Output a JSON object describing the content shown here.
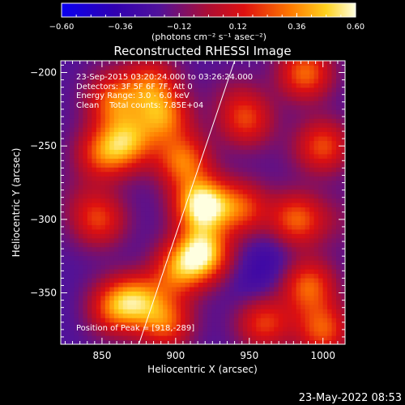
{
  "chart_data": {
    "type": "heatmap",
    "title": "Reconstructed RHESSI Image",
    "xlabel": "Heliocentric X (arcsec)",
    "ylabel": "Heliocentric Y (arcsec)",
    "xlim": [
      822,
      1015
    ],
    "ylim": [
      -385,
      -192
    ],
    "x_ticks": [
      850,
      900,
      950,
      1000
    ],
    "y_ticks": [
      -200,
      -250,
      -300,
      -350
    ],
    "colorbar": {
      "min": -0.6,
      "max": 0.6,
      "ticks": [
        -0.6,
        -0.36,
        -0.12,
        0.12,
        0.36,
        0.6
      ],
      "tick_labels": [
        "−0.60",
        "−0.36",
        "−0.12",
        "0.12",
        "0.36",
        "0.60"
      ],
      "units_label": "(photons cm⁻² s⁻¹ asec⁻²)"
    },
    "annotations": {
      "time": "23-Sep-2015 03:20:24.000 to 03:26:24.000",
      "detectors": "Detectors: 3F 5F 6F 7F, Att 0",
      "energy": "Energy Range: 3.0 - 6.0 keV",
      "clean": "Clean    Total counts: 7.85E+04",
      "peak": "Position of Peak = [918,-289]"
    },
    "peak": [
      918,
      -289
    ],
    "limb_line": [
      [
        875,
        -385
      ],
      [
        940,
        -192
      ]
    ],
    "sources": [
      {
        "x": 918,
        "y": -290,
        "value": 0.6
      },
      {
        "x": 918,
        "y": -323,
        "value": 0.52
      },
      {
        "x": 905,
        "y": -260,
        "value": 0.3
      },
      {
        "x": 892,
        "y": -230,
        "value": 0.28
      },
      {
        "x": 868,
        "y": -247,
        "value": 0.3
      },
      {
        "x": 858,
        "y": -220,
        "value": 0.24
      },
      {
        "x": 850,
        "y": -255,
        "value": 0.22
      },
      {
        "x": 883,
        "y": -208,
        "value": 0.22
      },
      {
        "x": 848,
        "y": -300,
        "value": 0.2
      },
      {
        "x": 875,
        "y": -353,
        "value": 0.3
      },
      {
        "x": 858,
        "y": -360,
        "value": 0.25
      },
      {
        "x": 893,
        "y": -370,
        "value": 0.26
      },
      {
        "x": 900,
        "y": -335,
        "value": 0.24
      },
      {
        "x": 945,
        "y": -292,
        "value": 0.22
      },
      {
        "x": 948,
        "y": -232,
        "value": 0.2
      },
      {
        "x": 988,
        "y": -200,
        "value": 0.3
      },
      {
        "x": 1000,
        "y": -250,
        "value": 0.24
      },
      {
        "x": 982,
        "y": -300,
        "value": 0.28
      },
      {
        "x": 990,
        "y": -345,
        "value": 0.28
      },
      {
        "x": 1000,
        "y": -375,
        "value": 0.26
      },
      {
        "x": 960,
        "y": -370,
        "value": 0.22
      },
      {
        "x": 940,
        "y": -215,
        "value": -0.1
      },
      {
        "x": 965,
        "y": -325,
        "value": -0.3
      },
      {
        "x": 955,
        "y": -345,
        "value": -0.28
      },
      {
        "x": 880,
        "y": -340,
        "value": -0.28
      },
      {
        "x": 835,
        "y": -360,
        "value": -0.22
      },
      {
        "x": 835,
        "y": -285,
        "value": -0.12
      },
      {
        "x": 975,
        "y": -255,
        "value": -0.18
      },
      {
        "x": 855,
        "y": -205,
        "value": -0.15
      },
      {
        "x": 1010,
        "y": -300,
        "value": -0.1
      }
    ]
  },
  "footer": {
    "date": "23-May-2022 08:53"
  },
  "colors": {
    "background": "#000000",
    "text": "#ffffff"
  }
}
